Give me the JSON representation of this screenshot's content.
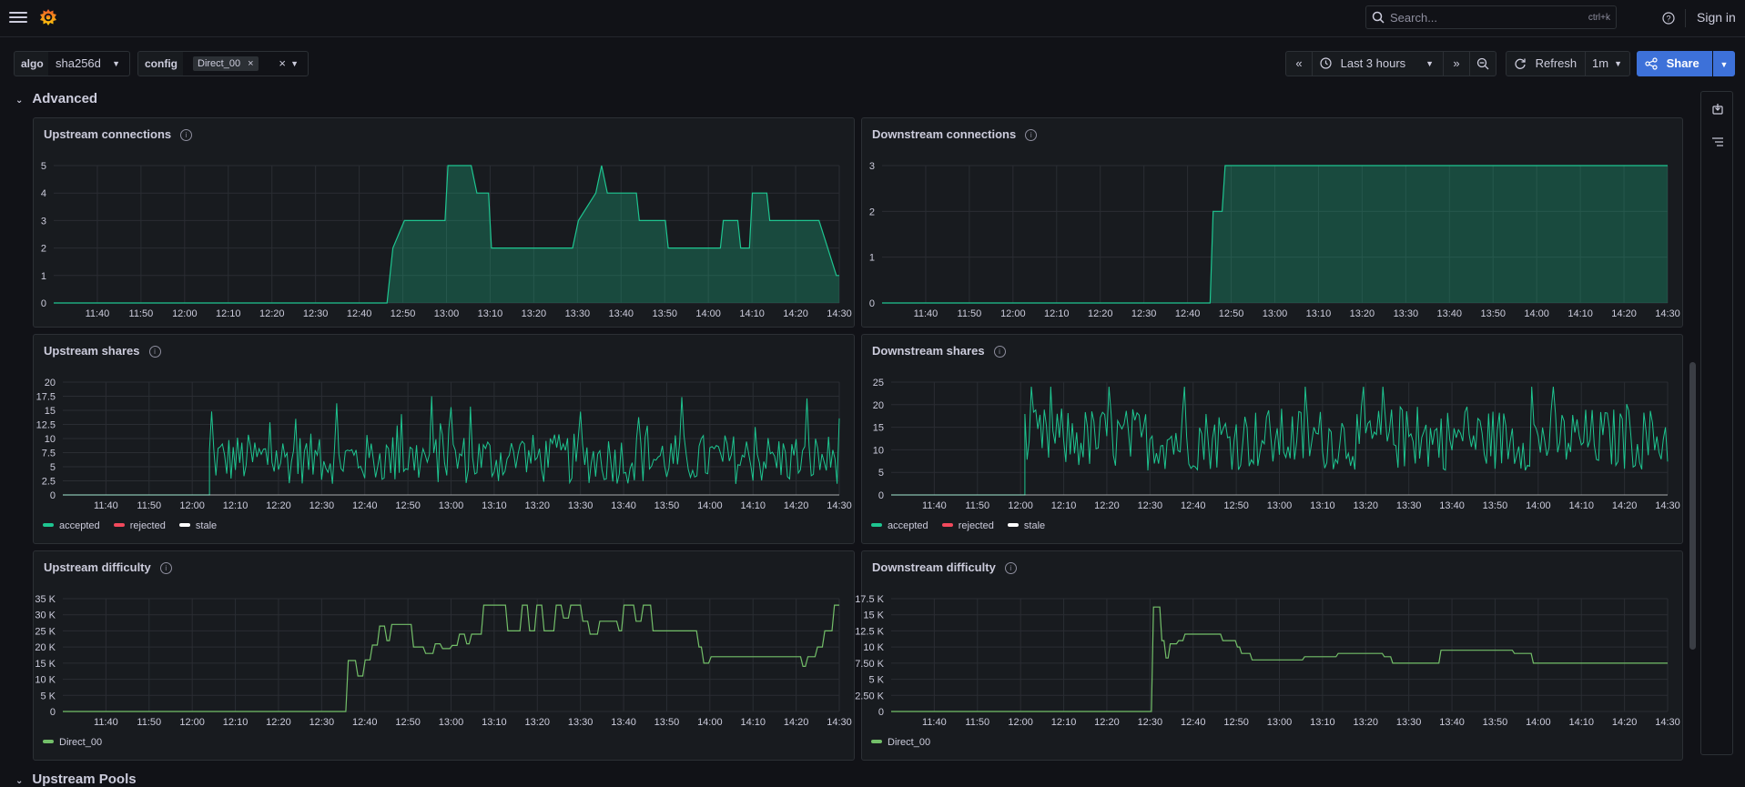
{
  "topbar": {
    "search_placeholder": "Search...",
    "search_shortcut": "ctrl+k",
    "signin_label": "Sign in"
  },
  "variables": {
    "algo_label": "algo",
    "algo_value": "sha256d",
    "config_label": "config",
    "config_pill": "Direct_00"
  },
  "timepicker": {
    "range_label": "Last 3 hours",
    "refresh_label": "Refresh",
    "interval_label": "1m",
    "share_label": "Share"
  },
  "rows": {
    "advanced": "Advanced",
    "upstream_pools": "Upstream Pools"
  },
  "colors": {
    "green_fill": "#2d8f6b",
    "green_line": "#1ec590",
    "light_green_line": "#73bf69",
    "red": "#f2495c",
    "white": "#ffffff",
    "primary": "#3d71d9"
  },
  "legends": {
    "accepted": "accepted",
    "rejected": "rejected",
    "stale": "stale",
    "direct": "Direct_00"
  },
  "time_ticks": [
    "11:40",
    "11:50",
    "12:00",
    "12:10",
    "12:20",
    "12:30",
    "12:40",
    "12:50",
    "13:00",
    "13:10",
    "13:20",
    "13:30",
    "13:40",
    "13:50",
    "14:00",
    "14:10",
    "14:20",
    "14:30"
  ],
  "panels": {
    "upstream_connections": {
      "title": "Upstream connections",
      "yticks": [
        "0",
        "1",
        "2",
        "3",
        "4",
        "5"
      ],
      "ymax": 5,
      "series": [
        [
          0,
          0
        ],
        [
          115,
          0
        ],
        [
          117,
          2
        ],
        [
          121,
          3
        ],
        [
          135,
          3
        ],
        [
          136,
          5
        ],
        [
          144,
          5
        ],
        [
          146,
          4
        ],
        [
          150,
          4
        ],
        [
          151,
          2
        ],
        [
          179,
          2
        ],
        [
          181,
          3
        ],
        [
          187,
          4
        ],
        [
          189,
          5
        ],
        [
          191,
          4
        ],
        [
          201,
          4
        ],
        [
          202,
          3
        ],
        [
          211,
          3
        ],
        [
          212,
          2
        ],
        [
          230,
          2
        ],
        [
          231,
          3
        ],
        [
          236,
          3
        ],
        [
          237,
          2
        ],
        [
          240,
          2
        ],
        [
          241,
          4
        ],
        [
          246,
          4
        ],
        [
          247,
          3
        ],
        [
          264,
          3
        ],
        [
          267,
          2
        ],
        [
          270,
          1
        ],
        [
          271,
          1
        ]
      ]
    },
    "downstream_connections": {
      "title": "Downstream connections",
      "yticks": [
        "0",
        "1",
        "2",
        "3"
      ],
      "ymax": 3,
      "series": [
        [
          0,
          0
        ],
        [
          109,
          0
        ],
        [
          110,
          2
        ],
        [
          113,
          2
        ],
        [
          114,
          3
        ],
        [
          261,
          3
        ]
      ]
    },
    "upstream_shares": {
      "title": "Upstream shares",
      "yticks": [
        "0",
        "2.5",
        "5",
        "7.5",
        "10",
        "12.5",
        "15",
        "17.5",
        "20"
      ],
      "ymax": 20
    },
    "downstream_shares": {
      "title": "Downstream shares",
      "yticks": [
        "0",
        "5",
        "10",
        "15",
        "20",
        "25"
      ],
      "ymax": 25
    },
    "upstream_difficulty": {
      "title": "Upstream difficulty",
      "yticks": [
        "0",
        "5 K",
        "10 K",
        "15 K",
        "20 K",
        "25 K",
        "30 K",
        "35 K"
      ],
      "ymax": 35000,
      "series": [
        [
          0,
          0
        ],
        [
          117,
          0
        ],
        [
          118,
          15800
        ],
        [
          121,
          15800
        ],
        [
          122,
          11000
        ],
        [
          124,
          11000
        ],
        [
          125,
          16000
        ],
        [
          127,
          16000
        ],
        [
          128,
          20600
        ],
        [
          130,
          20600
        ],
        [
          131,
          26500
        ],
        [
          133,
          26500
        ],
        [
          134,
          22000
        ],
        [
          135,
          22000
        ],
        [
          136,
          27000
        ],
        [
          144,
          27000
        ],
        [
          145,
          20000
        ],
        [
          149,
          20000
        ],
        [
          150,
          18000
        ],
        [
          153,
          18000
        ],
        [
          154,
          21000
        ],
        [
          156,
          21000
        ],
        [
          157,
          19500
        ],
        [
          160,
          19500
        ],
        [
          161,
          20500
        ],
        [
          163,
          20500
        ],
        [
          164,
          24000
        ],
        [
          166,
          24000
        ],
        [
          167,
          21000
        ],
        [
          168,
          21000
        ],
        [
          169,
          24000
        ],
        [
          173,
          24000
        ],
        [
          174,
          33000
        ],
        [
          183,
          33000
        ],
        [
          184,
          25000
        ],
        [
          189,
          25000
        ],
        [
          190,
          33000
        ],
        [
          192,
          33000
        ],
        [
          193,
          25000
        ],
        [
          195,
          25000
        ],
        [
          196,
          33000
        ],
        [
          198,
          33000
        ],
        [
          199,
          25000
        ],
        [
          203,
          25000
        ],
        [
          204,
          33000
        ],
        [
          206,
          33000
        ],
        [
          207,
          29000
        ],
        [
          209,
          29000
        ],
        [
          210,
          33000
        ],
        [
          214,
          33000
        ],
        [
          215,
          28000
        ],
        [
          217,
          28000
        ],
        [
          218,
          24000
        ],
        [
          221,
          24000
        ],
        [
          222,
          28000
        ],
        [
          225,
          28000
        ],
        [
          226,
          28000
        ],
        [
          229,
          28000
        ],
        [
          230,
          25000
        ],
        [
          231,
          25000
        ],
        [
          232,
          33000
        ],
        [
          236,
          33000
        ],
        [
          237,
          28000
        ],
        [
          239,
          28000
        ],
        [
          240,
          33000
        ],
        [
          243,
          33000
        ],
        [
          244,
          25000
        ],
        [
          262,
          25000
        ],
        [
          263,
          20000
        ],
        [
          264,
          20000
        ],
        [
          265,
          15000
        ],
        [
          267,
          15000
        ],
        [
          268,
          17000
        ],
        [
          305,
          17000
        ],
        [
          306,
          14000
        ],
        [
          307,
          14000
        ],
        [
          308,
          17000
        ],
        [
          311,
          17000
        ],
        [
          312,
          20000
        ],
        [
          314,
          20000
        ],
        [
          315,
          25000
        ],
        [
          318,
          25000
        ],
        [
          319,
          33000
        ],
        [
          321,
          33000
        ]
      ]
    },
    "downstream_difficulty": {
      "title": "Downstream difficulty",
      "yticks": [
        "0",
        "2.50 K",
        "5 K",
        "7.50 K",
        "10 K",
        "12.5 K",
        "15 K",
        "17.5 K"
      ],
      "ymax": 17500,
      "series": [
        [
          0,
          0
        ],
        [
          124,
          0
        ],
        [
          125,
          16200
        ],
        [
          128,
          16200
        ],
        [
          129,
          11000
        ],
        [
          130,
          11000
        ],
        [
          131,
          8300
        ],
        [
          132,
          8300
        ],
        [
          133,
          10500
        ],
        [
          136,
          10500
        ],
        [
          137,
          11000
        ],
        [
          139,
          11000
        ],
        [
          140,
          12000
        ],
        [
          157,
          12000
        ],
        [
          158,
          11000
        ],
        [
          164,
          11000
        ],
        [
          165,
          10000
        ],
        [
          166,
          10000
        ],
        [
          167,
          9000
        ],
        [
          171,
          9000
        ],
        [
          172,
          8000
        ],
        [
          196,
          8000
        ],
        [
          197,
          8500
        ],
        [
          212,
          8500
        ],
        [
          213,
          9000
        ],
        [
          234,
          9000
        ],
        [
          235,
          8500
        ],
        [
          238,
          8500
        ],
        [
          239,
          7500
        ],
        [
          261,
          7500
        ],
        [
          262,
          9500
        ],
        [
          296,
          9500
        ],
        [
          297,
          9000
        ],
        [
          305,
          9000
        ],
        [
          306,
          7500
        ],
        [
          370,
          7500
        ]
      ]
    }
  }
}
